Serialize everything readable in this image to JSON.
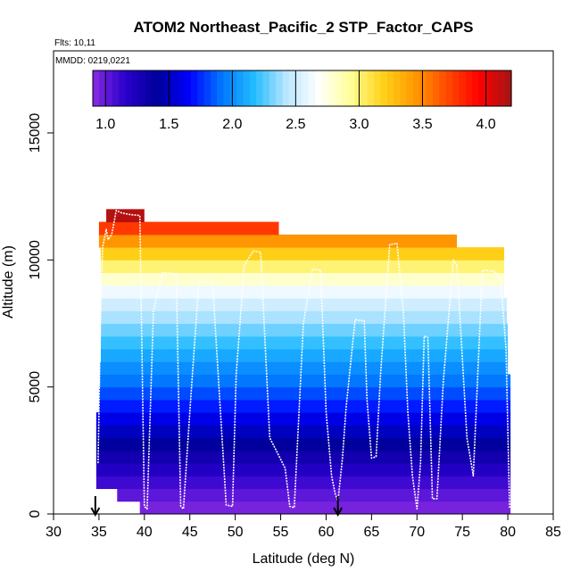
{
  "chart_data": {
    "type": "heatmap",
    "title": "ATOM2 Northeast_Pacific_2 STP_Factor_CAPS",
    "annotations": [
      "Flts: 10,11",
      "MMDD: 0219,0221"
    ],
    "xlabel": "Latitude (deg N)",
    "ylabel": "Altitude (m)",
    "xlim": [
      30,
      85
    ],
    "ylim": [
      0,
      17500
    ],
    "x_ticks": [
      30,
      35,
      40,
      45,
      50,
      55,
      60,
      65,
      70,
      75,
      80,
      85
    ],
    "y_ticks": [
      0,
      5000,
      10000,
      15000
    ],
    "colorbar": {
      "range": [
        0.9,
        4.2
      ],
      "ticks": [
        1.0,
        1.5,
        2.0,
        2.5,
        3.0,
        3.5,
        4.0
      ],
      "tick_labels": [
        "1.0",
        "1.5",
        "2.0",
        "2.5",
        "3.0",
        "3.5",
        "4.0"
      ],
      "colors": [
        "#8a2be2",
        "#2a00cc",
        "#00009a",
        "#0000ff",
        "#0077ff",
        "#22bbff",
        "#b8e6ff",
        "#ffffff",
        "#ffff99",
        "#ffd21a",
        "#ff9900",
        "#ff4a00",
        "#ff0000",
        "#a31515"
      ]
    },
    "layer_bands": {
      "layer_height_m": 500,
      "layers": [
        {
          "bottom": 0,
          "lat_min": 39.5,
          "lat_max": 80.3,
          "value": 0.95
        },
        {
          "bottom": 500,
          "lat_min": 37.0,
          "lat_max": 80.3,
          "value": 1.02
        },
        {
          "bottom": 1000,
          "lat_min": 34.7,
          "lat_max": 80.3,
          "value": 1.1
        },
        {
          "bottom": 1500,
          "lat_min": 34.7,
          "lat_max": 80.3,
          "value": 1.2
        },
        {
          "bottom": 2000,
          "lat_min": 34.7,
          "lat_max": 80.3,
          "value": 1.3
        },
        {
          "bottom": 2500,
          "lat_min": 34.7,
          "lat_max": 80.3,
          "value": 1.4
        },
        {
          "bottom": 3000,
          "lat_min": 34.7,
          "lat_max": 80.3,
          "value": 1.5
        },
        {
          "bottom": 3500,
          "lat_min": 34.7,
          "lat_max": 80.3,
          "value": 1.6
        },
        {
          "bottom": 4000,
          "lat_min": 35.0,
          "lat_max": 80.3,
          "value": 1.72
        },
        {
          "bottom": 4500,
          "lat_min": 35.0,
          "lat_max": 80.3,
          "value": 1.82
        },
        {
          "bottom": 5000,
          "lat_min": 35.1,
          "lat_max": 80.3,
          "value": 1.92
        },
        {
          "bottom": 5500,
          "lat_min": 35.1,
          "lat_max": 80.0,
          "value": 2.0
        },
        {
          "bottom": 6000,
          "lat_min": 35.2,
          "lat_max": 80.0,
          "value": 2.1
        },
        {
          "bottom": 6500,
          "lat_min": 35.2,
          "lat_max": 80.0,
          "value": 2.2
        },
        {
          "bottom": 7000,
          "lat_min": 35.2,
          "lat_max": 80.0,
          "value": 2.3
        },
        {
          "bottom": 7500,
          "lat_min": 35.2,
          "lat_max": 79.9,
          "value": 2.4
        },
        {
          "bottom": 8000,
          "lat_min": 35.2,
          "lat_max": 79.9,
          "value": 2.5
        },
        {
          "bottom": 8500,
          "lat_min": 35.2,
          "lat_max": 79.6,
          "value": 2.62
        },
        {
          "bottom": 9000,
          "lat_min": 35.2,
          "lat_max": 79.6,
          "value": 2.8
        },
        {
          "bottom": 9500,
          "lat_min": 35.2,
          "lat_max": 79.6,
          "value": 3.0
        },
        {
          "bottom": 10000,
          "lat_min": 35.2,
          "lat_max": 79.6,
          "value": 3.2
        },
        {
          "bottom": 10500,
          "lat_min": 35.0,
          "lat_max": 74.4,
          "value": 3.45
        },
        {
          "bottom": 11000,
          "lat_min": 35.0,
          "lat_max": 54.8,
          "value": 3.75
        },
        {
          "bottom": 11500,
          "lat_min": 35.8,
          "lat_max": 40.0,
          "value": 4.15
        }
      ]
    },
    "flight_track": {
      "lat": [
        34.9,
        35.0,
        35.2,
        35.4,
        35.8,
        36.0,
        36.4,
        36.9,
        37.5,
        38.5,
        39.5,
        40.0,
        40.3,
        41.0,
        42.0,
        43.5,
        44.0,
        44.3,
        45.0,
        46.0,
        47.5,
        49.0,
        49.7,
        50.1,
        51.0,
        52.0,
        52.8,
        53.8,
        55.5,
        56.0,
        56.5,
        57.5,
        58.5,
        59.4,
        60.0,
        60.6,
        61.0,
        61.3,
        61.8,
        62.2,
        63.2,
        64.2,
        64.5,
        65.0,
        65.5,
        66.0,
        67.0,
        67.8,
        68.5,
        69.0,
        69.5,
        70.0,
        70.4,
        70.8,
        71.2,
        71.7,
        72.2,
        72.9,
        74.0,
        74.4,
        75.5,
        76.2,
        77.2,
        78.5,
        79.2,
        79.8,
        80.2
      ],
      "alt": [
        2000,
        4000,
        8000,
        10500,
        11200,
        10800,
        11000,
        11950,
        11850,
        11780,
        11750,
        300,
        200,
        8000,
        9500,
        9450,
        300,
        200,
        4000,
        9150,
        9100,
        350,
        300,
        5500,
        9800,
        10350,
        10300,
        3000,
        1800,
        300,
        250,
        7500,
        9650,
        9600,
        4000,
        1500,
        800,
        500,
        2200,
        4200,
        7650,
        7600,
        4500,
        2200,
        2250,
        5500,
        10600,
        10650,
        8000,
        4000,
        1500,
        200,
        2000,
        7000,
        6950,
        600,
        600,
        5200,
        10000,
        9800,
        3000,
        1500,
        9600,
        9550,
        9300,
        6500,
        200
      ]
    },
    "markers": [
      {
        "type": "down-arrow",
        "lat": 34.6
      },
      {
        "type": "down-arrow",
        "lat": 61.3
      }
    ]
  }
}
